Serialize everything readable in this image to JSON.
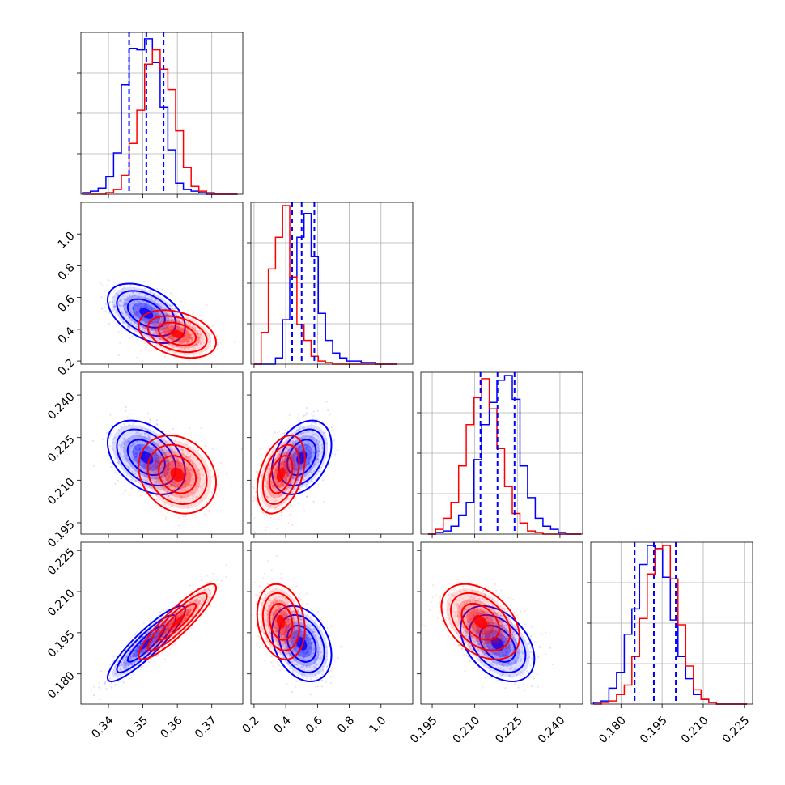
{
  "chart_data": {
    "type": "corner",
    "n_params": 4,
    "params": [
      {
        "range": [
          0.332,
          0.379
        ],
        "ticks": [
          0.34,
          0.35,
          0.36,
          0.37
        ],
        "tick_labels": [
          "0.34",
          "0.35",
          "0.36",
          "0.37"
        ]
      },
      {
        "range": [
          0.18,
          1.2
        ],
        "ticks": [
          0.2,
          0.4,
          0.6,
          0.8,
          1.0
        ],
        "tick_labels": [
          "0.2",
          "0.4",
          "0.6",
          "0.8",
          "1.0"
        ]
      },
      {
        "range": [
          0.191,
          0.248
        ],
        "ticks": [
          0.195,
          0.21,
          0.225,
          0.24
        ],
        "tick_labels": [
          "0.195",
          "0.210",
          "0.225",
          "0.240"
        ]
      },
      {
        "range": [
          0.169,
          0.228
        ],
        "ticks": [
          0.18,
          0.195,
          0.21,
          0.225
        ],
        "tick_labels": [
          "0.180",
          "0.195",
          "0.210",
          "0.225"
        ]
      }
    ],
    "grid": true,
    "series": [
      {
        "color": "#0000ff",
        "mean": [
          0.351,
          0.5,
          0.218,
          0.191
        ],
        "sd": [
          0.0045,
          0.075,
          0.0052,
          0.0055
        ],
        "corr": [
          [
            0,
            1,
            -0.45
          ],
          [
            0,
            2,
            -0.4
          ],
          [
            0,
            3,
            0.9
          ],
          [
            1,
            2,
            0.35
          ],
          [
            1,
            3,
            -0.3
          ],
          [
            2,
            3,
            -0.4
          ]
        ],
        "quantiles": [
          [
            0.346,
            0.351,
            0.356
          ],
          [
            0.44,
            0.5,
            0.58
          ],
          [
            0.212,
            0.218,
            0.224
          ],
          [
            0.185,
            0.192,
            0.2
          ]
        ],
        "hist": [
          {
            "edges_range": [
              0.3325,
              0.3775
            ],
            "counts": [
              0.01,
              0.02,
              0.04,
              0.11,
              0.26,
              0.69,
              0.92,
              0.91,
              0.98,
              0.83,
              0.55,
              0.28,
              0.07,
              0.03,
              0.02,
              0.01,
              0.0,
              0.0,
              0.0,
              0.0
            ]
          },
          {
            "edges_range": [
              0.2,
              1.1
            ],
            "counts": [
              0.0,
              0.0,
              0.0,
              0.04,
              0.28,
              0.55,
              0.8,
              0.95,
              0.68,
              0.32,
              0.15,
              0.07,
              0.04,
              0.02,
              0.02,
              0.01,
              0.01,
              0.0,
              0.0,
              0.0
            ]
          },
          {
            "edges_range": [
              0.1935,
              0.2475
            ],
            "counts": [
              0.0,
              0.01,
              0.02,
              0.05,
              0.12,
              0.2,
              0.47,
              0.69,
              0.83,
              0.97,
              1.0,
              0.85,
              0.43,
              0.23,
              0.1,
              0.05,
              0.03,
              0.01,
              0.0,
              0.0
            ]
          },
          {
            "edges_range": [
              0.17,
              0.226
            ],
            "counts": [
              0.01,
              0.02,
              0.1,
              0.2,
              0.44,
              0.6,
              0.88,
              1.0,
              0.98,
              0.8,
              0.53,
              0.3,
              0.16,
              0.06,
              0.03,
              0.01,
              0.0,
              0.0,
              0.0,
              0.0
            ]
          }
        ]
      },
      {
        "color": "#ff0000",
        "mean": [
          0.36,
          0.37,
          0.212,
          0.199
        ],
        "sd": [
          0.0045,
          0.06,
          0.0055,
          0.0055
        ],
        "corr": [
          [
            0,
            1,
            -0.35
          ],
          [
            0,
            2,
            -0.2
          ],
          [
            0,
            3,
            0.9
          ],
          [
            1,
            2,
            0.4
          ],
          [
            1,
            3,
            -0.2
          ],
          [
            2,
            3,
            -0.4
          ]
        ],
        "hist": [
          {
            "edges_range": [
              0.3325,
              0.3775
            ],
            "counts": [
              0.0,
              0.0,
              0.0,
              0.01,
              0.03,
              0.12,
              0.32,
              0.53,
              0.82,
              0.91,
              0.79,
              0.66,
              0.4,
              0.17,
              0.05,
              0.02,
              0.01,
              0.0,
              0.0,
              0.0
            ]
          },
          {
            "edges_range": [
              0.2,
              1.1
            ],
            "counts": [
              0.0,
              0.2,
              0.6,
              0.8,
              1.0,
              0.55,
              0.25,
              0.15,
              0.05,
              0.02,
              0.01,
              0.0,
              0.0,
              0.0,
              0.0,
              0.0,
              0.0,
              0.0,
              0.0,
              0.0
            ]
          },
          {
            "edges_range": [
              0.1935,
              0.2475
            ],
            "counts": [
              0.0,
              0.03,
              0.1,
              0.2,
              0.43,
              0.69,
              0.86,
              0.98,
              0.79,
              0.54,
              0.3,
              0.13,
              0.07,
              0.02,
              0.01,
              0.0,
              0.0,
              0.0,
              0.0,
              0.0
            ]
          },
          {
            "edges_range": [
              0.17,
              0.226
            ],
            "counts": [
              0.0,
              0.01,
              0.02,
              0.06,
              0.12,
              0.3,
              0.54,
              0.82,
              0.98,
              1.0,
              0.79,
              0.5,
              0.24,
              0.09,
              0.03,
              0.01,
              0.0,
              0.0,
              0.0,
              0.0
            ]
          }
        ]
      }
    ]
  }
}
